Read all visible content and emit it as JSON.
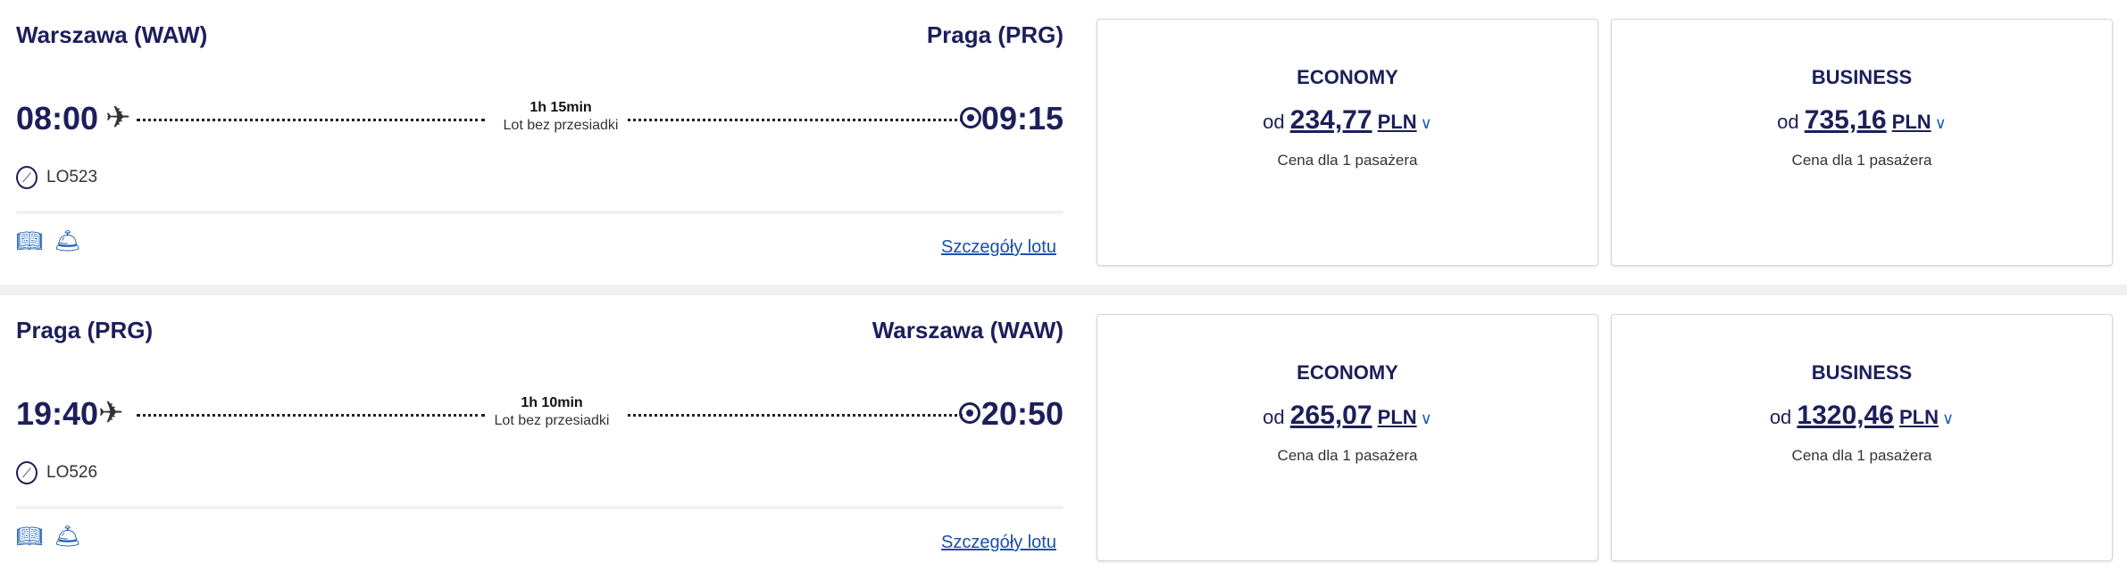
{
  "flights": [
    {
      "from": "Warszawa (WAW)",
      "to": "Praga (PRG)",
      "dep": "08:00",
      "arr": "09:15",
      "duration": "1h 15min",
      "stops": "Lot bez przesiadki",
      "flight_no": "LO523",
      "details": "Szczegóły lotu",
      "fares": [
        {
          "cls": "ECONOMY",
          "prefix": "od",
          "amount": "234,77",
          "currency": "PLN",
          "note": "Cena dla 1 pasażera"
        },
        {
          "cls": "BUSINESS",
          "prefix": "od",
          "amount": "735,16",
          "currency": "PLN",
          "note": "Cena dla 1 pasażera"
        }
      ]
    },
    {
      "from": "Praga (PRG)",
      "to": "Warszawa (WAW)",
      "dep": "19:40",
      "arr": "20:50",
      "duration": "1h 10min",
      "stops": "Lot bez przesiadki",
      "flight_no": "LO526",
      "details": "Szczegóły lotu",
      "fares": [
        {
          "cls": "ECONOMY",
          "prefix": "od",
          "amount": "265,07",
          "currency": "PLN",
          "note": "Cena dla 1 pasażera"
        },
        {
          "cls": "BUSINESS",
          "prefix": "od",
          "amount": "1320,46",
          "currency": "PLN",
          "note": "Cena dla 1 pasażera"
        }
      ]
    }
  ],
  "icons": [
    "plane-icon",
    "destination-icon",
    "airline-logo-icon",
    "menu-book-icon",
    "meal-service-icon",
    "chevron-down-icon"
  ],
  "colors": {
    "navy": "#1c1f5a",
    "link": "#1a4fa8"
  }
}
